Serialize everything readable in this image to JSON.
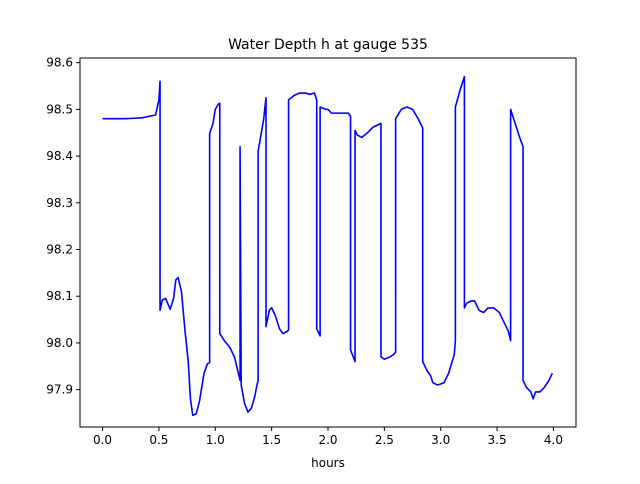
{
  "chart_data": {
    "type": "line",
    "title": "Water Depth h at gauge 535",
    "xlabel": "hours",
    "ylabel": "",
    "xlim": [
      -0.2,
      4.2
    ],
    "ylim": [
      97.82,
      98.61
    ],
    "xticks": [
      0.0,
      0.5,
      1.0,
      1.5,
      2.0,
      2.5,
      3.0,
      3.5,
      4.0
    ],
    "xtick_labels": [
      "0.0",
      "0.5",
      "1.0",
      "1.5",
      "2.0",
      "2.5",
      "3.0",
      "3.5",
      "4.0"
    ],
    "yticks": [
      97.9,
      98.0,
      98.1,
      98.2,
      98.3,
      98.4,
      98.5,
      98.6
    ],
    "ytick_labels": [
      "97.9",
      "98.0",
      "98.1",
      "98.2",
      "98.3",
      "98.4",
      "98.5",
      "98.6"
    ],
    "grid": false,
    "series": [
      {
        "color": "#0000ff",
        "x": [
          0.0,
          0.2,
          0.35,
          0.47,
          0.5,
          0.51,
          0.51,
          0.53,
          0.56,
          0.6,
          0.63,
          0.65,
          0.67,
          0.7,
          0.73,
          0.76,
          0.78,
          0.8,
          0.83,
          0.86,
          0.9,
          0.93,
          0.95,
          0.95,
          0.98,
          1.0,
          1.03,
          1.04,
          1.04,
          1.08,
          1.13,
          1.17,
          1.21,
          1.22,
          1.22,
          1.23,
          1.26,
          1.29,
          1.32,
          1.35,
          1.37,
          1.38,
          1.38,
          1.43,
          1.45,
          1.45,
          1.48,
          1.5,
          1.53,
          1.57,
          1.6,
          1.64,
          1.65,
          1.65,
          1.7,
          1.75,
          1.8,
          1.84,
          1.88,
          1.9,
          1.9,
          1.93,
          1.93,
          1.98,
          2.0,
          2.03,
          2.1,
          2.18,
          2.2,
          2.2,
          2.24,
          2.24,
          2.26,
          2.3,
          2.35,
          2.4,
          2.47,
          2.47,
          2.5,
          2.55,
          2.58,
          2.6,
          2.6,
          2.65,
          2.7,
          2.75,
          2.8,
          2.84,
          2.84,
          2.88,
          2.91,
          2.93,
          2.97,
          3.0,
          3.03,
          3.07,
          3.12,
          3.13,
          3.13,
          3.17,
          3.21,
          3.21,
          3.23,
          3.27,
          3.3,
          3.34,
          3.38,
          3.42,
          3.47,
          3.52,
          3.56,
          3.6,
          3.62,
          3.62,
          3.7,
          3.73,
          3.73,
          3.76,
          3.8,
          3.82,
          3.84,
          3.88,
          3.92,
          3.96,
          3.99
        ],
        "values": [
          98.48,
          98.48,
          98.482,
          98.488,
          98.52,
          98.56,
          98.07,
          98.092,
          98.095,
          98.072,
          98.095,
          98.135,
          98.14,
          98.11,
          98.03,
          97.96,
          97.88,
          97.845,
          97.848,
          97.875,
          97.935,
          97.955,
          97.958,
          98.448,
          98.47,
          98.5,
          98.512,
          98.513,
          98.02,
          98.005,
          97.99,
          97.97,
          97.93,
          97.92,
          98.42,
          97.91,
          97.87,
          97.852,
          97.86,
          97.885,
          97.91,
          97.92,
          98.41,
          98.48,
          98.525,
          98.035,
          98.07,
          98.075,
          98.06,
          98.03,
          98.02,
          98.025,
          98.028,
          98.52,
          98.53,
          98.535,
          98.535,
          98.532,
          98.535,
          98.52,
          98.03,
          98.015,
          98.505,
          98.5,
          98.5,
          98.492,
          98.492,
          98.492,
          98.485,
          97.985,
          97.96,
          98.455,
          98.445,
          98.44,
          98.45,
          98.462,
          98.47,
          97.97,
          97.965,
          97.97,
          97.975,
          97.98,
          98.48,
          98.5,
          98.505,
          98.5,
          98.48,
          98.46,
          97.96,
          97.94,
          97.93,
          97.915,
          97.91,
          97.912,
          97.915,
          97.935,
          97.975,
          98.005,
          98.505,
          98.54,
          98.57,
          98.075,
          98.085,
          98.09,
          98.09,
          98.07,
          98.065,
          98.075,
          98.075,
          98.065,
          98.045,
          98.025,
          98.005,
          98.5,
          98.44,
          98.42,
          97.92,
          97.905,
          97.895,
          97.88,
          97.895,
          97.895,
          97.905,
          97.92,
          97.935
        ]
      }
    ]
  }
}
